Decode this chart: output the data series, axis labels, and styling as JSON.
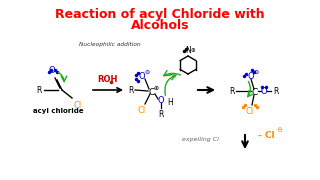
{
  "title_line1": "Reaction of acyl Chloride with",
  "title_line2": "Alcohols",
  "title_color": "#ff0000",
  "title_fontsize": 9.0,
  "bg_color": "#ffffff",
  "nucleophilic_text": "Nucleophilic addition",
  "expelling_text": "expelling Cl",
  "expelling_color": "#666666",
  "minus_cl_text": "- Cl",
  "minus_cl_color": "#ff8c00",
  "acyl_chloride_label": "acyl chloride",
  "green_color": "#22aa22",
  "blue_color": "#0000cc",
  "orange_color": "#ff8c00",
  "red_color": "#cc0000",
  "black_color": "#000000",
  "dark_gray": "#333333"
}
